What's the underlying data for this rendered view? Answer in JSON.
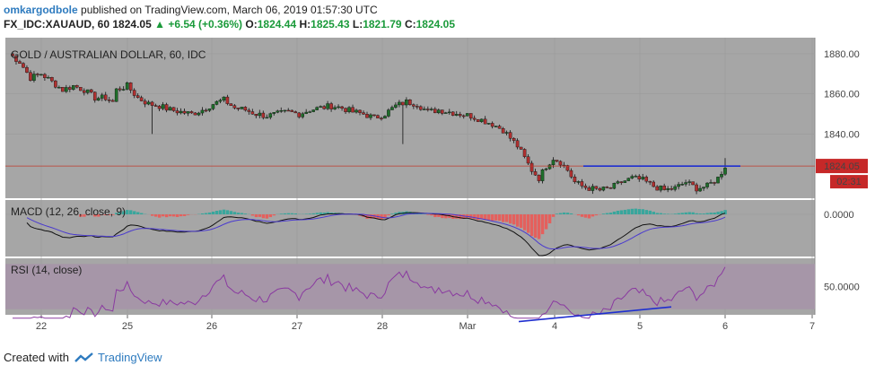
{
  "header": {
    "user": "omkargodbole",
    "published": " published on TradingView.com, March 06, 2019 01:57:30 UTC",
    "symbol": "FX_IDC:XAUAUD, 60",
    "last": "1824.05",
    "change": "▲ +6.54 (+0.36%)",
    "o_label": "O:",
    "o": "1824.44",
    "h_label": "H:",
    "h": "1825.43",
    "l_label": "L:",
    "l": "1821.79",
    "c_label": "C:",
    "c": "1824.05"
  },
  "footer": {
    "created_with": "Created with",
    "brand": "TradingView"
  },
  "colors": {
    "pane_bg": "#a6a6a6",
    "rsi_band": "#a696a8",
    "up": "#1e6e2a",
    "down": "#b03030",
    "macd": "#111111",
    "signal": "#4a3acf",
    "hist_up": "#26a69a",
    "hist_down": "#ef5350",
    "rsi_line": "#8a3aa0",
    "trendline": "#1f2fd0",
    "price_line": "#c0392b"
  },
  "chart_data": [
    {
      "type": "candlestick",
      "title": "GOLD / AUSTRALIAN DOLLAR, 60, IDC",
      "x_ticks": [
        "22",
        "25",
        "26",
        "27",
        "28",
        "Mar",
        "4",
        "5",
        "6",
        "7"
      ],
      "y_ticks": [
        1880,
        1860,
        1840,
        1820
      ],
      "ylim": [
        1808,
        1888
      ],
      "last_price": "1824.05",
      "countdown": "02:31",
      "close_path": [
        [
          0,
          1880
        ],
        [
          3,
          1876
        ],
        [
          6,
          1868
        ],
        [
          9,
          1870
        ],
        [
          12,
          1866
        ],
        [
          15,
          1862
        ],
        [
          18,
          1864
        ],
        [
          21,
          1862
        ],
        [
          24,
          1858
        ],
        [
          27,
          1858
        ],
        [
          29,
          1856
        ],
        [
          30,
          1862
        ],
        [
          33,
          1864
        ],
        [
          36,
          1858
        ],
        [
          39,
          1855
        ],
        [
          42,
          1854
        ],
        [
          45,
          1852
        ],
        [
          48,
          1851
        ],
        [
          51,
          1850
        ],
        [
          54,
          1852
        ],
        [
          57,
          1855
        ],
        [
          60,
          1857
        ],
        [
          63,
          1853
        ],
        [
          66,
          1852
        ],
        [
          69,
          1850
        ],
        [
          72,
          1849
        ],
        [
          75,
          1850
        ],
        [
          78,
          1851
        ],
        [
          81,
          1850
        ],
        [
          84,
          1852
        ],
        [
          87,
          1853
        ],
        [
          90,
          1854
        ],
        [
          93,
          1853
        ],
        [
          96,
          1851
        ],
        [
          99,
          1850
        ],
        [
          102,
          1848
        ],
        [
          105,
          1850
        ],
        [
          108,
          1854
        ],
        [
          111,
          1856
        ],
        [
          114,
          1855
        ],
        [
          117,
          1851
        ],
        [
          120,
          1852
        ],
        [
          123,
          1851
        ],
        [
          126,
          1850
        ],
        [
          129,
          1849
        ],
        [
          132,
          1847
        ],
        [
          135,
          1845
        ],
        [
          138,
          1842
        ],
        [
          140,
          1838
        ],
        [
          142,
          1834
        ],
        [
          144,
          1828
        ],
        [
          146,
          1822
        ],
        [
          148,
          1818
        ],
        [
          150,
          1824
        ],
        [
          152,
          1828
        ],
        [
          154,
          1826
        ],
        [
          156,
          1822
        ],
        [
          158,
          1816
        ],
        [
          160,
          1814
        ],
        [
          162,
          1813
        ],
        [
          165,
          1812
        ],
        [
          168,
          1813
        ],
        [
          171,
          1816
        ],
        [
          174,
          1818
        ],
        [
          177,
          1817
        ],
        [
          180,
          1814
        ],
        [
          183,
          1812
        ],
        [
          186,
          1813
        ],
        [
          189,
          1816
        ],
        [
          192,
          1813
        ],
        [
          195,
          1814
        ],
        [
          198,
          1818
        ],
        [
          200,
          1824
        ]
      ],
      "resistance_line": [
        1824,
        1824
      ]
    },
    {
      "type": "line",
      "title": "MACD (12, 26, close, 9)",
      "y_ticks": [
        0
      ],
      "tick_label": "0.0000"
    },
    {
      "type": "line",
      "title": "RSI (14, close)",
      "y_ticks": [
        50
      ],
      "tick_label": "50.0000",
      "band": [
        30,
        70
      ]
    }
  ]
}
